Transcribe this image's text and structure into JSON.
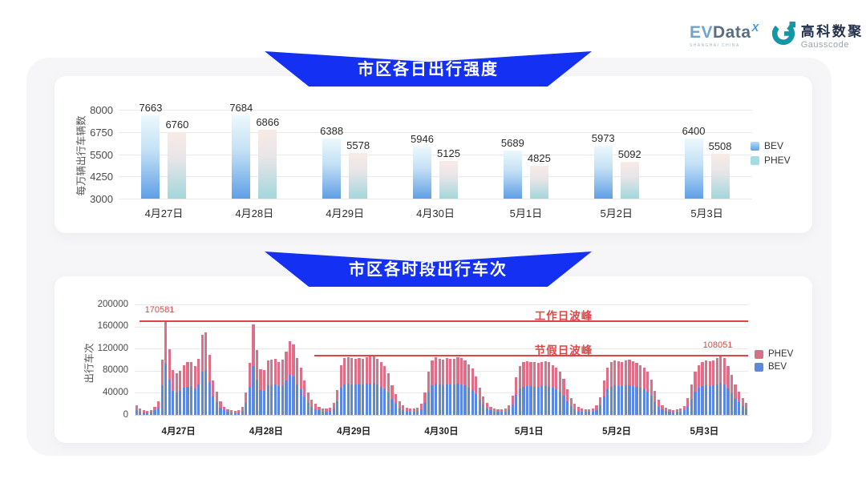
{
  "header": {
    "evdata_logo": {
      "ev": "EV",
      "data": "Data",
      "sup": "X",
      "subtext": "SHANGHAI CHINA"
    },
    "gausscode_logo": {
      "cn": "高科数聚",
      "en": "Gausscode"
    }
  },
  "colors": {
    "banner_blue": "#1430f2",
    "bev_blue": "#5c88dd",
    "phev_pink": "#dd7088",
    "annotation_red": "#e04545",
    "bar_gradient_bev_top": "#ecf8fc",
    "bar_gradient_bev_bottom": "#5f9fe6",
    "bar_gradient_phev_top": "#f8ebe6",
    "bar_gradient_phev_bottom": "#a2d7db"
  },
  "chart_data": [
    {
      "type": "bar",
      "title": "市区各日出行强度",
      "ylabel": "每万辆出行车辆数",
      "xlabel": "",
      "categories": [
        "4月27日",
        "4月28日",
        "4月29日",
        "4月30日",
        "5月1日",
        "5月2日",
        "5月3日"
      ],
      "series": [
        {
          "name": "BEV",
          "values": [
            7663,
            7684,
            6388,
            5946,
            5689,
            5973,
            6400
          ]
        },
        {
          "name": "PHEV",
          "values": [
            6760,
            6866,
            5578,
            5125,
            4825,
            5092,
            5508
          ]
        }
      ],
      "ylim": [
        3000,
        8000
      ],
      "yticks": [
        3000,
        4250,
        5500,
        6750,
        8000
      ],
      "grid": true,
      "legend_position": "right"
    },
    {
      "type": "bar",
      "stacked": true,
      "title": "市区各时段出行车次",
      "ylabel": "出行车次",
      "xlabel": "",
      "categories": [
        "4月27日",
        "4月28日",
        "4月29日",
        "4月30日",
        "5月1日",
        "5月2日",
        "5月3日"
      ],
      "bars_per_category": 24,
      "legend": [
        "PHEV",
        "BEV"
      ],
      "bev_share_of_total": 0.54,
      "hourly_totals": [
        [
          17000,
          11000,
          8000,
          7000,
          9000,
          15000,
          25000,
          100000,
          170581,
          119000,
          81000,
          76000,
          80000,
          90000,
          95000,
          96000,
          89000,
          101000,
          145000,
          150000,
          109000,
          62000,
          42000,
          25000
        ],
        [
          15000,
          10000,
          8000,
          7000,
          9000,
          14000,
          40000,
          94000,
          164000,
          117000,
          82000,
          81000,
          99000,
          100000,
          101000,
          96000,
          100000,
          115000,
          133000,
          128000,
          103000,
          85000,
          63000,
          41000
        ],
        [
          27000,
          20000,
          15000,
          12000,
          11000,
          13000,
          22000,
          45000,
          90000,
          103000,
          105000,
          103000,
          101000,
          103000,
          102000,
          104000,
          106000,
          108000,
          101000,
          95000,
          88000,
          75000,
          54000,
          37000
        ],
        [
          25000,
          17000,
          13000,
          11000,
          11000,
          13000,
          20000,
          40000,
          78000,
          98000,
          104000,
          102000,
          100000,
          103000,
          102000,
          101000,
          105000,
          103000,
          98000,
          92000,
          84000,
          70000,
          50000,
          34000
        ],
        [
          22000,
          15000,
          12000,
          10000,
          10000,
          12000,
          18000,
          35000,
          68000,
          88000,
          95000,
          97000,
          96000,
          95000,
          94000,
          96000,
          97000,
          95000,
          90000,
          85000,
          78000,
          65000,
          46000,
          30000
        ],
        [
          20000,
          14000,
          11000,
          10000,
          10000,
          12000,
          17000,
          32000,
          62000,
          85000,
          95000,
          98000,
          97000,
          96000,
          98000,
          100000,
          97000,
          94000,
          90000,
          86000,
          78000,
          64000,
          44000,
          28000
        ],
        [
          18000,
          13000,
          10000,
          9000,
          10000,
          12000,
          16000,
          30000,
          55000,
          78000,
          90000,
          96000,
          99000,
          97000,
          99000,
          103000,
          108051,
          103000,
          88000,
          72000,
          55000,
          42000,
          30000,
          22000
        ]
      ],
      "ylim": [
        0,
        200000
      ],
      "yticks": [
        0,
        40000,
        80000,
        120000,
        160000,
        200000
      ],
      "grid": true,
      "legend_position": "right",
      "annotations": [
        {
          "label": "工作日波峰",
          "value": 170581,
          "value_label": "170581"
        },
        {
          "label": "节假日波峰",
          "value": 108051,
          "value_label": "108051"
        }
      ]
    }
  ]
}
